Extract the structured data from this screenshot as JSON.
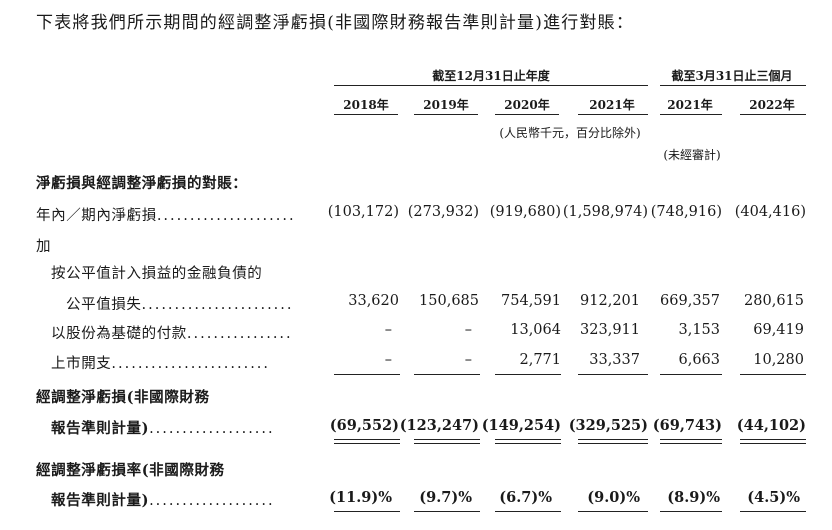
{
  "intro": "下表將我們所示期間的經調整淨虧損(非國際財務報告準則計量)進行對賬：",
  "header": {
    "group1": "截至12月31日止年度",
    "group2": "截至3月31日止三個月",
    "years": [
      "2018年",
      "2019年",
      "2020年",
      "2021年",
      "2021年",
      "2022年"
    ],
    "unit_note": "(人民幣千元，百分比除外)",
    "unaudited": "(未經審計)"
  },
  "rows": {
    "section": "淨虧損與經調整淨虧損的對賬：",
    "net_loss": {
      "label": "年內／期內淨虧損",
      "dots": ".....................",
      "values": [
        "(103,172)",
        "(273,932)",
        "(919,680)",
        "(1,598,974)",
        "(748,916)",
        "(404,416)"
      ]
    },
    "add": "加",
    "fv_line1": "按公平值計入損益的金融負債的",
    "fv": {
      "label": "公平值損失",
      "dots": ".......................",
      "values": [
        "33,620",
        "150,685",
        "754,591",
        "912,201",
        "669,357",
        "280,615"
      ]
    },
    "sbc": {
      "label": "以股份為基礎的付款",
      "dots": "................",
      "values": [
        "–",
        "–",
        "13,064",
        "323,911",
        "3,153",
        "69,419"
      ]
    },
    "listing": {
      "label": "上市開支",
      "dots": "........................",
      "values": [
        "–",
        "–",
        "2,771",
        "33,337",
        "6,663",
        "10,280"
      ]
    },
    "adj_line1": "經調整淨虧損(非國際財務",
    "adj": {
      "label": "報告準則計量)",
      "dots": "...................",
      "values": [
        "(69,552)",
        "(123,247)",
        "(149,254)",
        "(329,525)",
        "(69,743)",
        "(44,102)"
      ]
    },
    "rate_line1": "經調整淨虧損率(非國際財務",
    "rate": {
      "label": "報告準則計量)",
      "dots": "...................",
      "values": [
        "(11.9)%",
        "(9.7)%",
        "(6.7)%",
        "(9.0)%",
        "(8.9)%",
        "(4.5)%"
      ]
    }
  }
}
